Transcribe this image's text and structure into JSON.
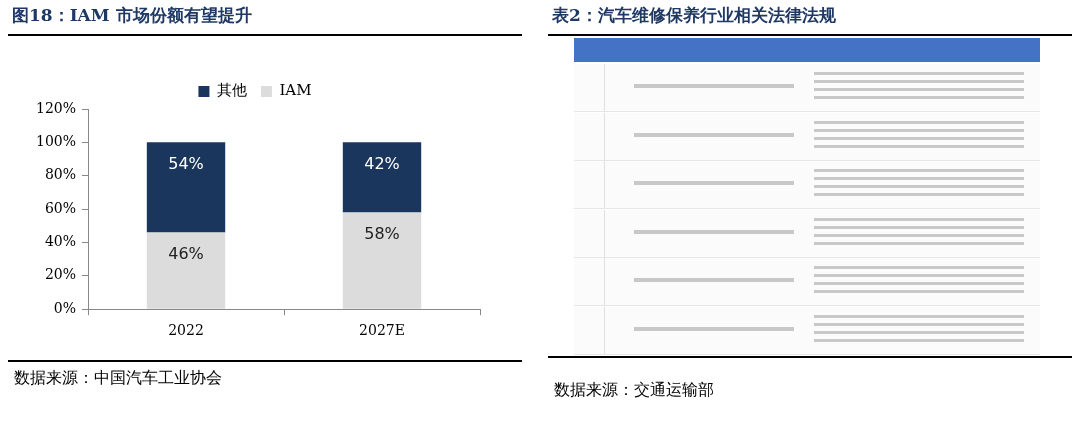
{
  "chart_data": [
    {
      "type": "bar",
      "title": "图18：IAM 市场份额有望提升",
      "categories": [
        "2022",
        "2027E"
      ],
      "stacked": true,
      "series": [
        {
          "name": "IAM",
          "color": "#dcdcdc",
          "values": [
            46,
            58
          ],
          "value_labels": [
            "46%",
            "58%"
          ]
        },
        {
          "name": "其他",
          "color": "#1b365d",
          "values": [
            54,
            42
          ],
          "value_labels": [
            "54%",
            "42%"
          ]
        }
      ],
      "ylim": [
        0,
        120
      ],
      "yticks": [
        {
          "value": 0,
          "label": "0%"
        },
        {
          "value": 20,
          "label": "20%"
        },
        {
          "value": 40,
          "label": "40%"
        },
        {
          "value": 60,
          "label": "60%"
        },
        {
          "value": 80,
          "label": "80%"
        },
        {
          "value": 100,
          "label": "100%"
        },
        {
          "value": 120,
          "label": "120%"
        }
      ],
      "grid": false,
      "legend": "top",
      "annotations": [
        "数据来源：中国汽车工业协会"
      ]
    },
    {
      "type": "other",
      "title": "表2：汽车维修保养行业相关法律法规",
      "annotations": [
        "数据来源：交通运输部"
      ]
    }
  ]
}
